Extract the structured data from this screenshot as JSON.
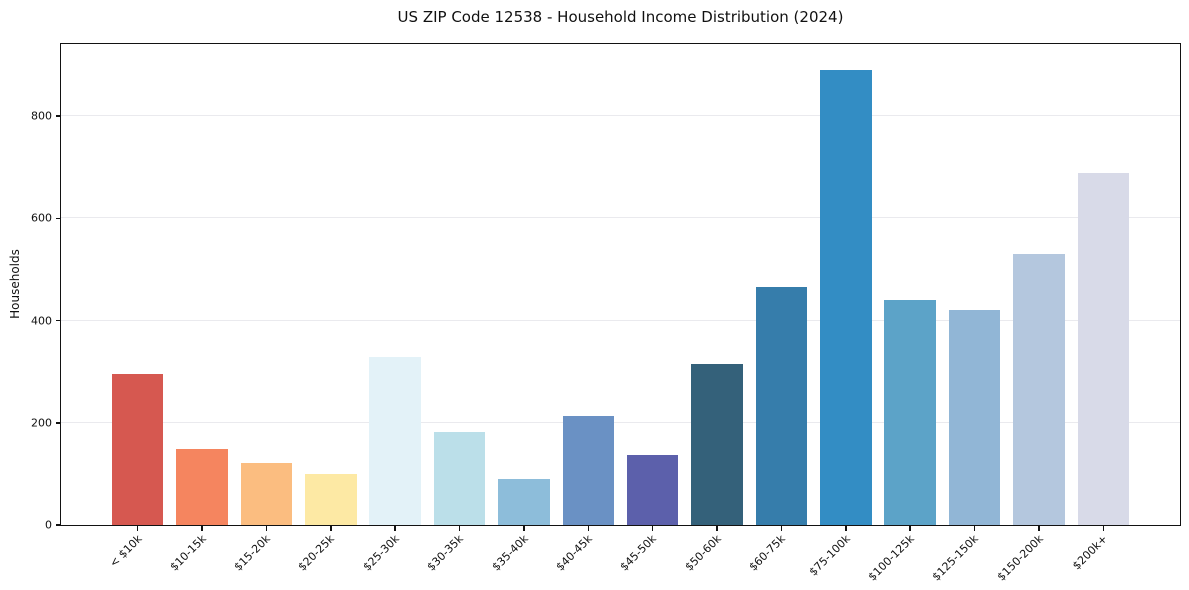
{
  "title": "US ZIP Code 12538 - Household Income Distribution (2024)",
  "chart_data": {
    "type": "bar",
    "title": "US ZIP Code 12538 - Household Income Distribution (2024)",
    "xlabel": "",
    "ylabel": "Households",
    "categories": [
      "< $10k",
      "$10-15k",
      "$15-20k",
      "$20-25k",
      "$25-30k",
      "$30-35k",
      "$35-40k",
      "$40-45k",
      "$45-50k",
      "$50-60k",
      "$60-75k",
      "$75-100k",
      "$100-125k",
      "$125-150k",
      "$150-200k",
      "$200k+"
    ],
    "values": [
      296,
      148,
      122,
      100,
      328,
      182,
      90,
      213,
      136,
      315,
      466,
      890,
      440,
      420,
      530,
      689
    ],
    "bar_colors": [
      "#d65850",
      "#f5855f",
      "#fbbd80",
      "#fde9a4",
      "#e3f2f8",
      "#bbdfe9",
      "#8dbdda",
      "#6a91c4",
      "#5c60ab",
      "#34617a",
      "#367dab",
      "#338dc4",
      "#5ca3c8",
      "#91b6d6",
      "#b4c7de",
      "#d8dae8"
    ],
    "yticks": [
      0,
      200,
      400,
      600,
      800
    ],
    "ylim": [
      0,
      941
    ],
    "grid": "horizontal",
    "gridline_color": "#eaeaee",
    "background_color": "#ffffff",
    "xtick_rotation": 45,
    "legend": "none"
  }
}
